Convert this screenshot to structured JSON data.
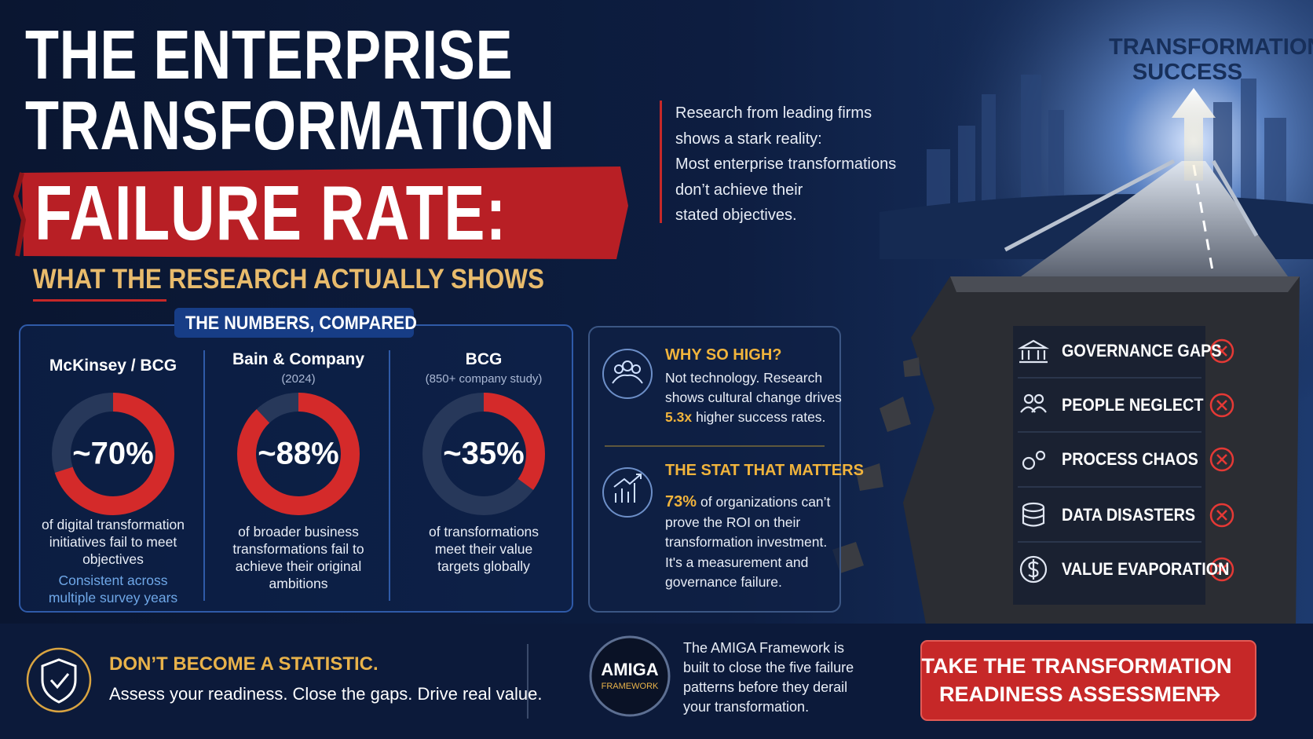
{
  "header": {
    "title_lines": [
      "THE ENTERPRISE",
      "TRANSFORMATION"
    ],
    "title_highlight": "FAILURE RATE:",
    "subtitle": "WHAT THE RESEARCH ACTUALLY SHOWS"
  },
  "intro": {
    "lines": [
      "Research from leading firms",
      "shows a stark reality:",
      "Most enterprise transformations",
      "don’t achieve their",
      "stated objectives."
    ]
  },
  "numbers": {
    "heading": "THE NUMBERS, COMPARED",
    "color": "#d42a2a",
    "track_color": "#27385a",
    "studies": [
      {
        "source": "McKinsey / BCG",
        "value": 70,
        "value_label": "~70%",
        "description": [
          "of digital transformation",
          "initiatives fail to meet",
          "objectives"
        ],
        "footnote": [
          "Consistent across",
          "multiple survey years"
        ]
      },
      {
        "source": "Bain & Company",
        "detail": "(2024)",
        "value": 88,
        "value_label": "~88%",
        "description": [
          "of broader business",
          "transformations fail to",
          "achieve their original",
          "ambitions"
        ]
      },
      {
        "source": "BCG",
        "detail": "(850+ company study)",
        "value": 35,
        "value_label": "~35%",
        "description": [
          "of transformations",
          "meet their value",
          "targets globally"
        ]
      }
    ]
  },
  "why": {
    "heading": "WHY SO HIGH?",
    "lines": [
      "Not technology. Research",
      "shows cultural change drives"
    ],
    "highlight": "5.3x",
    "tail": "higher success rates."
  },
  "stat": {
    "heading": "THE STAT THAT MATTERS",
    "highlight": "73%",
    "first_tail": "of organizations can’t",
    "lines": [
      "prove the ROI on their",
      "transformation investment.",
      "It's a measurement and",
      "governance failure."
    ]
  },
  "illustration": {
    "label_lines": [
      "TRANSFORMATION",
      "SUCCESS"
    ],
    "failures": [
      "GOVERNANCE GAPS",
      "PEOPLE NEGLECT",
      "PROCESS CHAOS",
      "DATA DISASTERS",
      "VALUE EVAPORATION"
    ]
  },
  "footer": {
    "cta_heading": "DON’T BECOME A STATISTIC.",
    "cta_text": "Assess your readiness. Close the gaps. Drive real value.",
    "logo_name": "AMIGA",
    "logo_sub": "FRAMEWORK",
    "framework_lines": [
      "The AMIGA Framework is",
      "built to close the five failure",
      "patterns before they derail",
      "your transformation."
    ],
    "button_lines": [
      "TAKE THE TRANSFORMATION",
      "READINESS ASSESSMENT"
    ]
  }
}
